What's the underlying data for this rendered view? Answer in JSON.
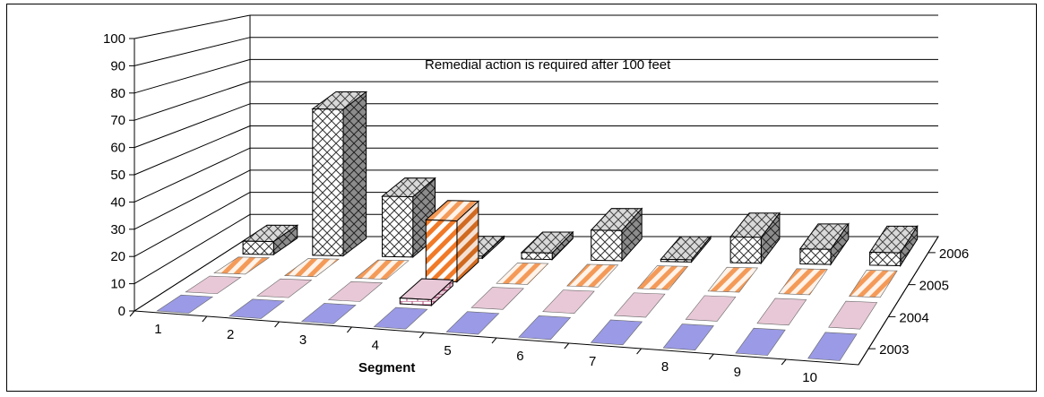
{
  "chart_data": {
    "type": "bar",
    "variant": "3d-clustered-depth",
    "title": "",
    "xlabel": "Segment",
    "ylabel": "",
    "ylim": [
      0,
      100
    ],
    "yticks": [
      0,
      10,
      20,
      30,
      40,
      50,
      60,
      70,
      80,
      90,
      100
    ],
    "categories": [
      "1",
      "2",
      "3",
      "4",
      "5",
      "6",
      "7",
      "8",
      "9",
      "10"
    ],
    "grid": true,
    "annotation": "Remedial action is required after 100 feet",
    "series": [
      {
        "name": "2003",
        "values": [
          0,
          0,
          0,
          0,
          0,
          0,
          0,
          0,
          0,
          0
        ],
        "color": "#7b7bdc",
        "pattern": "solid"
      },
      {
        "name": "2004",
        "values": [
          0,
          0,
          0,
          3,
          0,
          0,
          0,
          0,
          0,
          0
        ],
        "color": "#c0608a",
        "pattern": "brick"
      },
      {
        "name": "2005",
        "values": [
          0,
          0,
          0,
          30,
          0,
          0,
          0,
          0,
          0,
          0
        ],
        "color": "#f07a28",
        "pattern": "diagonal"
      },
      {
        "name": "2006",
        "values": [
          6,
          68,
          28,
          1,
          3,
          14,
          1,
          12,
          7,
          6
        ],
        "color": "#555555",
        "pattern": "diamond"
      }
    ]
  }
}
